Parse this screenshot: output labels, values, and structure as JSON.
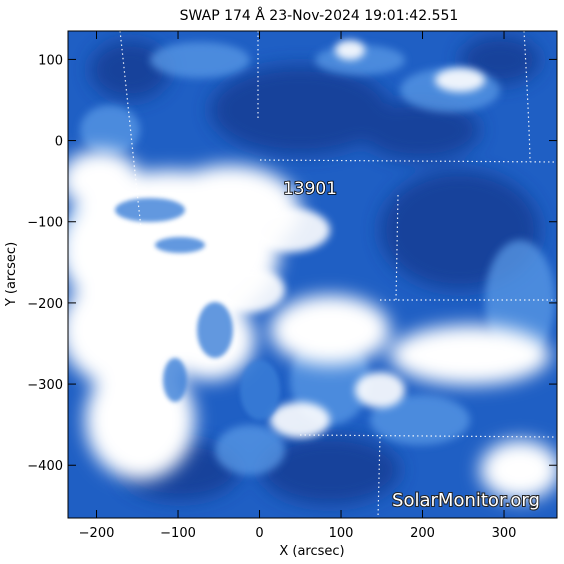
{
  "title": "SWAP  174 Å 23-Nov-2024 19:01:42.551",
  "active_region_label": "13901",
  "watermark": "SolarMonitor.org",
  "axes": {
    "x_label": "X (arcsec)",
    "y_label": "Y (arcsec)",
    "x_range": [
      -235,
      365
    ],
    "y_range": [
      -465,
      135
    ],
    "x_ticks": [
      {
        "value": -200,
        "label": "−200"
      },
      {
        "value": -100,
        "label": "−100"
      },
      {
        "value": 0,
        "label": "0"
      },
      {
        "value": 100,
        "label": "100"
      },
      {
        "value": 200,
        "label": "200"
      },
      {
        "value": 300,
        "label": "300"
      }
    ],
    "y_ticks": [
      {
        "value": 100,
        "label": "100"
      },
      {
        "value": 0,
        "label": "0"
      },
      {
        "value": -100,
        "label": "−100"
      },
      {
        "value": -200,
        "label": "−200"
      },
      {
        "value": -300,
        "label": "−300"
      },
      {
        "value": -400,
        "label": "−400"
      }
    ]
  },
  "colors": {
    "background_blue": "#1f5fc4",
    "dark_blue": "#123e94",
    "bright": "#ffffff",
    "grid": "#ffffff"
  }
}
